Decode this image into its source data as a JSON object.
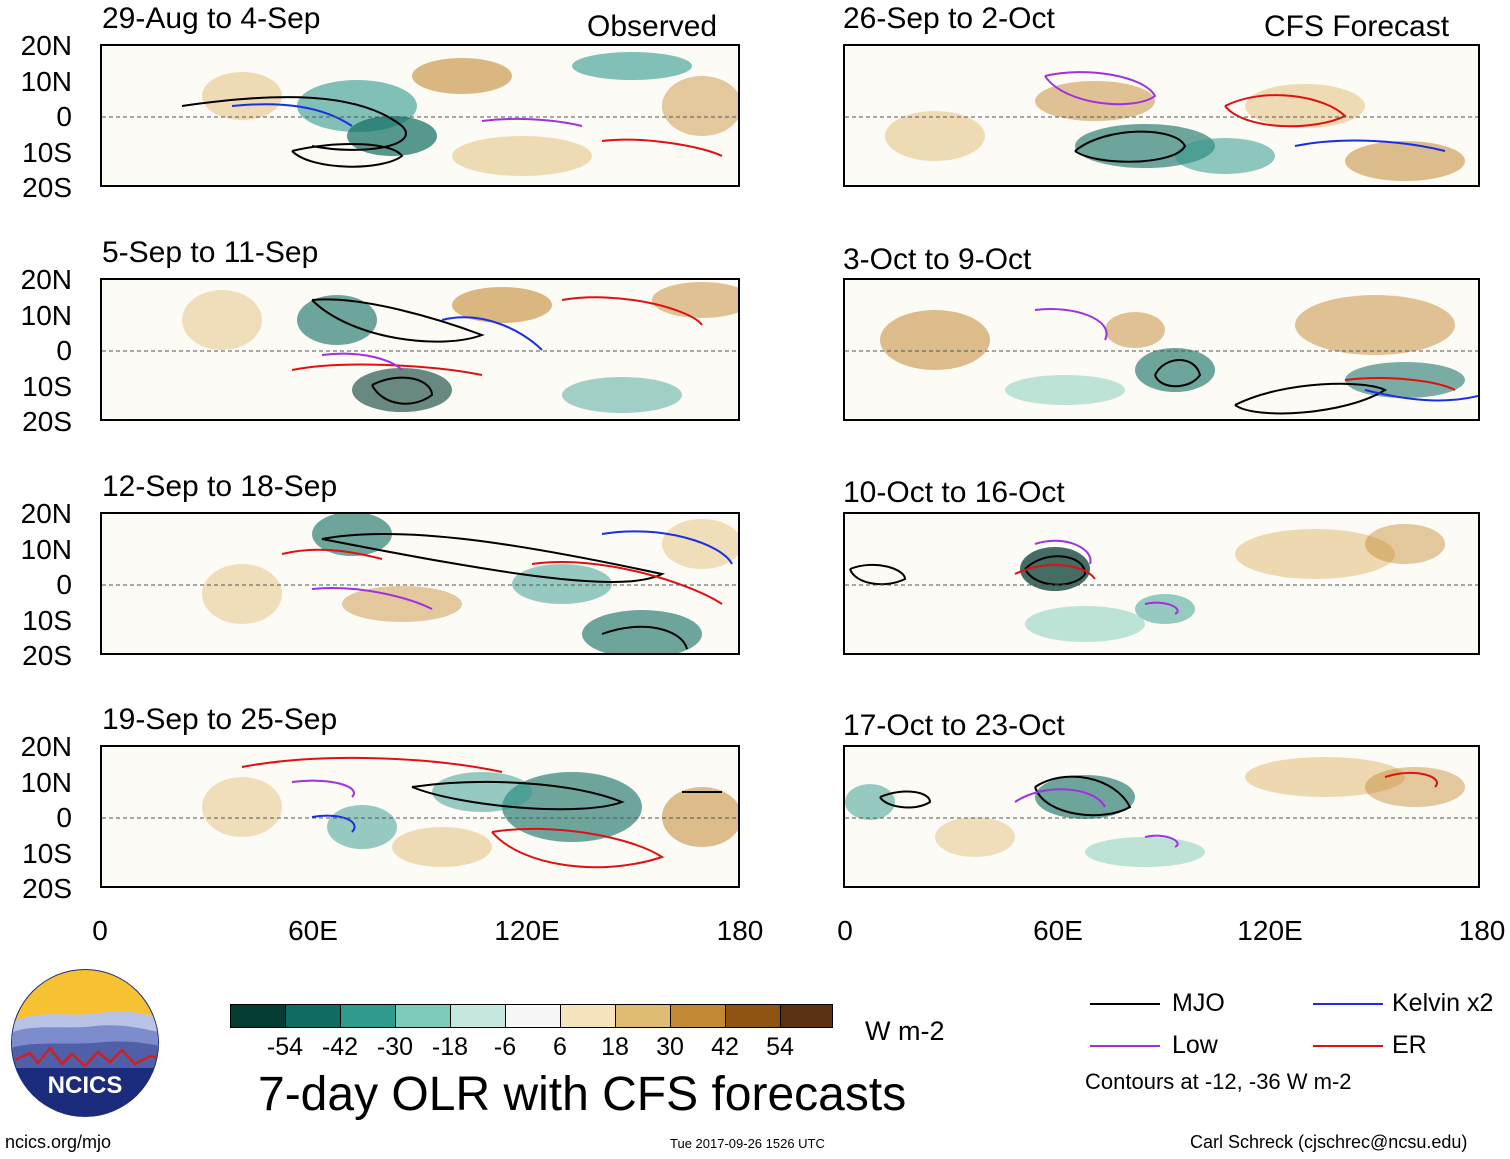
{
  "figure": {
    "title": "7-day OLR with CFS forecasts",
    "units": "W m-2",
    "observed_label": "Observed",
    "forecast_label": "CFS Forecast",
    "contour_note": "Contours at -12, -36 W m-2",
    "website": "ncics.org/mjo",
    "timestamp": "Tue 2017-09-26 1526 UTC",
    "author": "Carl Schreck (cjschrec@ncsu.edu)",
    "logo_text": "NCICS"
  },
  "panels": {
    "observed": [
      {
        "title": "29-Aug to 4-Sep"
      },
      {
        "title": "5-Sep to 11-Sep"
      },
      {
        "title": "12-Sep to 18-Sep"
      },
      {
        "title": "19-Sep to 25-Sep"
      }
    ],
    "forecast": [
      {
        "title": "26-Sep to 2-Oct"
      },
      {
        "title": "3-Oct to 9-Oct"
      },
      {
        "title": "10-Oct to 16-Oct"
      },
      {
        "title": "17-Oct to 23-Oct"
      }
    ]
  },
  "axes": {
    "lat_labels": [
      "20N",
      "10N",
      "0",
      "10S",
      "20S"
    ],
    "lon_labels": [
      "0",
      "60E",
      "120E",
      "180"
    ]
  },
  "colorbar": {
    "labels": [
      "-54",
      "-42",
      "-30",
      "-18",
      "-6",
      "6",
      "18",
      "30",
      "42",
      "54"
    ],
    "colors": [
      "#053d33",
      "#0e6c62",
      "#2f9a8d",
      "#7ecbb9",
      "#c4e8df",
      "#f7f7f7",
      "#f5e4bd",
      "#e0bb74",
      "#c38833",
      "#8f5414",
      "#5a3410"
    ]
  },
  "legend": [
    {
      "label": "MJO",
      "color": "#000000"
    },
    {
      "label": "Kelvin x2",
      "color": "#1a2fe0"
    },
    {
      "label": "Low",
      "color": "#a030e0"
    },
    {
      "label": "ER",
      "color": "#e01010"
    }
  ]
}
